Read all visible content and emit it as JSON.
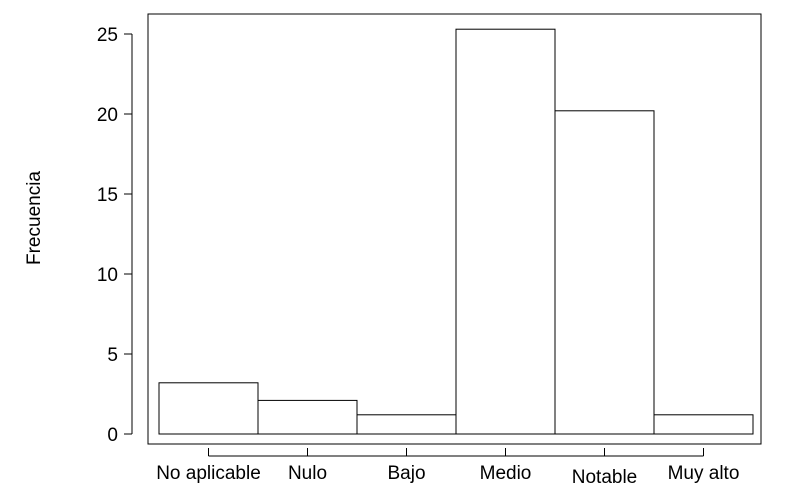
{
  "chart_data": {
    "type": "bar",
    "categories": [
      "No aplicable",
      "Nulo",
      "Bajo",
      "Medio",
      "Notable",
      "Muy alto"
    ],
    "values": [
      3.2,
      2.1,
      1.2,
      25.3,
      20.2,
      1.2
    ],
    "title": "",
    "xlabel": "",
    "ylabel": "Frecuencia",
    "ylim": [
      0,
      26.5
    ],
    "yticks": [
      "0",
      "5",
      "10",
      "15",
      "20",
      "25"
    ],
    "grid": false,
    "legend": "none",
    "bar_fill": "#ffffff",
    "bar_stroke": "#000000"
  }
}
